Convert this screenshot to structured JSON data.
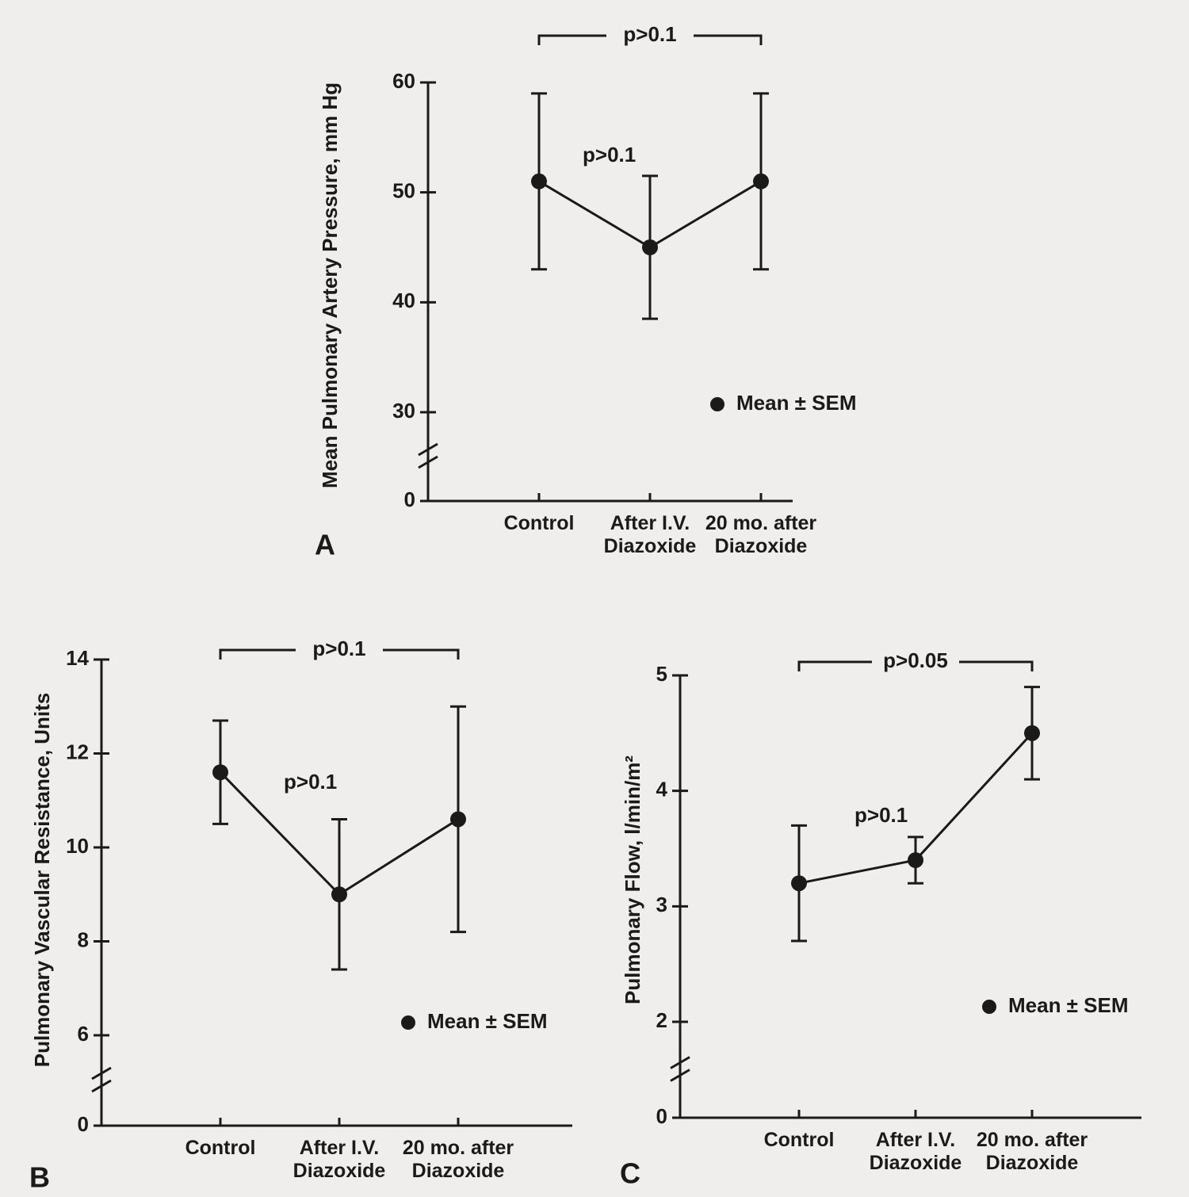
{
  "chart_data": [
    {
      "type": "line",
      "label": "A",
      "y_label": "Mean Pulmonary Artery Pressure, mm Hg",
      "categories": [
        "Control",
        "After I.V. Diazoxide",
        "20 mo. after Diazoxide"
      ],
      "values": [
        51,
        45,
        51
      ],
      "errors": [
        8,
        6.5,
        8
      ],
      "color": "#1a1a1a",
      "ylim": [
        0,
        60
      ],
      "yticks": [
        0,
        30,
        40,
        50,
        60
      ],
      "axis_break": [
        0,
        30
      ],
      "bracket_label": "p>0.1",
      "annotation": "p>0.1",
      "legend": "Mean ± SEM"
    },
    {
      "type": "line",
      "label": "B",
      "y_label": "Pulmonary Vascular Resistance, Units",
      "categories": [
        "Control",
        "After I.V. Diazoxide",
        "20 mo. after Diazoxide"
      ],
      "values": [
        11.6,
        9.0,
        10.6
      ],
      "errors": [
        1.1,
        1.6,
        2.4
      ],
      "color": "#1a1a1a",
      "ylim": [
        0,
        14
      ],
      "yticks": [
        0,
        6,
        8,
        10,
        12,
        14
      ],
      "axis_break": [
        0,
        6
      ],
      "bracket_label": "p>0.1",
      "annotation": "p>0.1",
      "legend": "Mean ± SEM"
    },
    {
      "type": "line",
      "label": "C",
      "y_label": "Pulmonary Flow, l/min/m²",
      "categories": [
        "Control",
        "After I.V. Diazoxide",
        "20 mo. after Diazoxide"
      ],
      "values": [
        3.2,
        3.4,
        4.5
      ],
      "errors": [
        0.5,
        0.2,
        0.4
      ],
      "color": "#1a1a1a",
      "ylim": [
        0,
        5
      ],
      "yticks": [
        0,
        2,
        3,
        4,
        5
      ],
      "axis_break": [
        0,
        2
      ],
      "bracket_label": "p>0.05",
      "annotation": "p>0.1",
      "legend": "Mean ± SEM"
    }
  ]
}
